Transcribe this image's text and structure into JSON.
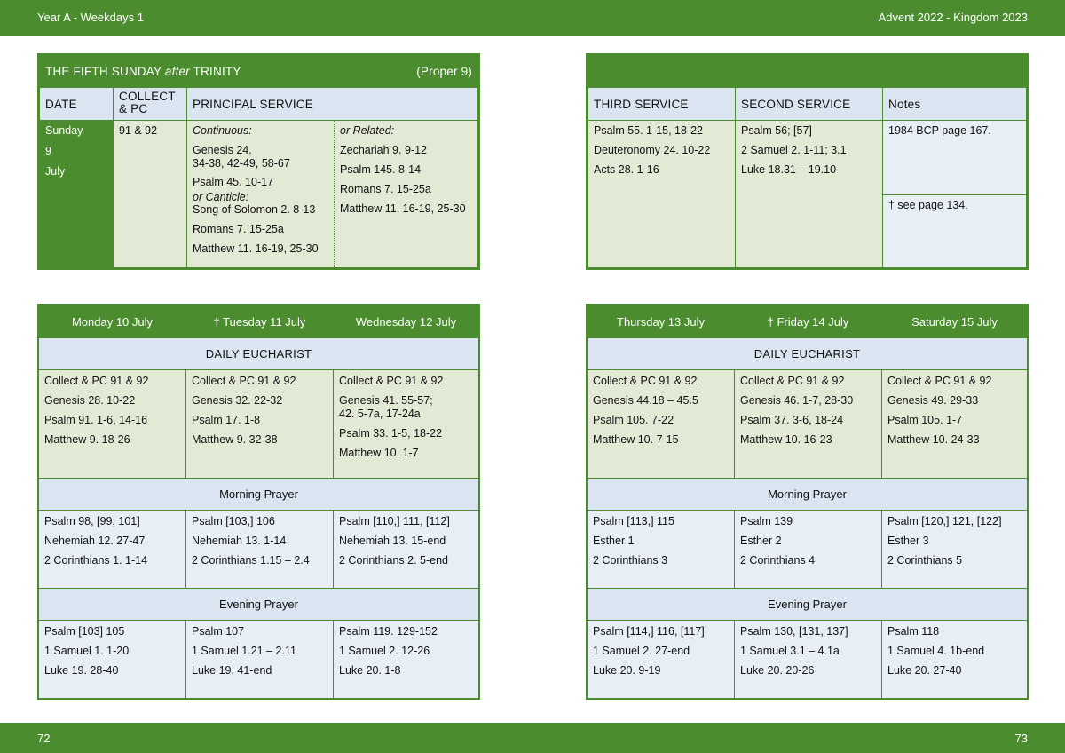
{
  "header": {
    "left": "Year A - Weekdays 1",
    "right": "Advent  2022 - Kingdom 2023"
  },
  "footer": {
    "left_page": "72",
    "right_page": "73"
  },
  "sunday": {
    "title_pre": "THE FIFTH SUNDAY ",
    "title_italic": "after",
    "title_post": " TRINITY",
    "proper": "(Proper 9)",
    "col_date": "DATE",
    "col_collect": "COLLECT & PC",
    "col_principal": "PRINCIPAL SERVICE",
    "date_lines": [
      "Sunday",
      "9",
      "July"
    ],
    "collect": "91 & 92",
    "continuous_label": "Continuous:",
    "continuous": [
      "Genesis 24.",
      "34-38, 42-49, 58-67",
      "Psalm 45. 10-17",
      "or Canticle:",
      "Song of Solomon 2. 8-13",
      "Romans 7. 15-25a",
      "Matthew 11. 16-19, 25-30"
    ],
    "related_label": "or Related:",
    "related": [
      "Zechariah 9. 9-12",
      "Psalm 145. 8-14",
      "Romans 7. 15-25a",
      "Matthew 11. 16-19, 25-30"
    ],
    "col_third": "THIRD SERVICE",
    "col_second": "SECOND SERVICE",
    "col_notes": "Notes",
    "third": [
      "Psalm 55. 1-15, 18-22",
      "Deuteronomy 24. 10-22",
      "Acts 28. 1-16"
    ],
    "second": [
      "Psalm 56; [57]",
      "2 Samuel 2. 1-11; 3.1",
      "Luke 18.31 – 19.10"
    ],
    "notes1": "1984 BCP page 167.",
    "notes2": "†  see page 134."
  },
  "left_week": {
    "days": [
      "Monday 10 July",
      "†  Tuesday 11 July",
      "Wednesday 12 July"
    ],
    "eucharist_label": "DAILY EUCHARIST",
    "eucharist": [
      [
        "Collect & PC 91 & 92",
        "Genesis 28. 10-22",
        "Psalm 91. 1-6, 14-16",
        "Matthew 9. 18-26"
      ],
      [
        "Collect & PC 91 & 92",
        "Genesis 32. 22-32",
        "Psalm 17. 1-8",
        "Matthew 9. 32-38"
      ],
      [
        "Collect & PC 91 & 92",
        "Genesis 41. 55-57;",
        "42. 5-7a, 17-24a",
        "Psalm 33. 1-5, 18-22",
        "Matthew 10. 1-7"
      ]
    ],
    "morning_label": "Morning Prayer",
    "morning": [
      [
        "Psalm 98, [99, 101]",
        "Nehemiah 12. 27-47",
        "2 Corinthians 1. 1-14"
      ],
      [
        "Psalm [103,] 106",
        "Nehemiah 13. 1-14",
        "2 Corinthians 1.15 – 2.4"
      ],
      [
        "Psalm [110,] 111, [112]",
        "Nehemiah 13. 15-end",
        "2 Corinthians 2. 5-end"
      ]
    ],
    "evening_label": "Evening Prayer",
    "evening": [
      [
        "Psalm [103] 105",
        "1 Samuel 1. 1-20",
        "Luke 19. 28-40"
      ],
      [
        "Psalm 107",
        "1 Samuel 1.21 – 2.11",
        "Luke 19. 41-end"
      ],
      [
        "Psalm 119. 129-152",
        "1 Samuel 2. 12-26",
        "Luke 20. 1-8"
      ]
    ]
  },
  "right_week": {
    "days": [
      "Thursday 13 July",
      "†  Friday 14 July",
      "Saturday 15 July"
    ],
    "eucharist_label": "DAILY EUCHARIST",
    "eucharist": [
      [
        "Collect & PC 91 & 92",
        "Genesis 44.18 – 45.5",
        "Psalm 105. 7-22",
        "Matthew 10. 7-15"
      ],
      [
        "Collect & PC 91 & 92",
        "Genesis 46. 1-7, 28-30",
        "Psalm 37. 3-6, 18-24",
        "Matthew 10. 16-23"
      ],
      [
        "Collect & PC 91 & 92",
        "Genesis 49. 29-33",
        "Psalm 105. 1-7",
        "Matthew 10. 24-33"
      ]
    ],
    "morning_label": "Morning Prayer",
    "morning": [
      [
        "Psalm [113,] 115",
        "Esther 1",
        "2 Corinthians 3"
      ],
      [
        "Psalm 139",
        "Esther 2",
        "2 Corinthians 4"
      ],
      [
        "Psalm [120,] 121, [122]",
        "Esther 3",
        "2 Corinthians 5"
      ]
    ],
    "evening_label": "Evening Prayer",
    "evening": [
      [
        "Psalm [114,] 116, [117]",
        "1 Samuel 2. 27-end",
        "Luke 20. 9-19"
      ],
      [
        "Psalm 130, [131, 137]",
        "1 Samuel 3.1 – 4.1a",
        "Luke 20. 20-26"
      ],
      [
        "Psalm 118",
        "1 Samuel 4. 1b-end",
        "Luke 20. 27-40"
      ]
    ]
  }
}
